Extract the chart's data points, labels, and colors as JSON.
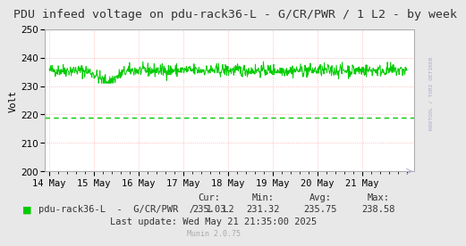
{
  "title": "PDU infeed voltage on pdu-rack36-L - G/CR/PWR / 1 L2 - by week",
  "ylabel": "Volt",
  "bg_color": "#e8e8e8",
  "plot_bg_color": "#ffffff",
  "line_color": "#00cc00",
  "dashed_green_value": 219.0,
  "upper_dotted_value": 250.0,
  "ylim": [
    200,
    250
  ],
  "yticks": [
    200,
    210,
    220,
    230,
    240,
    250
  ],
  "grid_color": "#ffaaaa",
  "legend_label": "pdu-rack36-L  -  G/CR/PWR  /  1  L2",
  "legend_color": "#00cc00",
  "stats_cur": "235.03",
  "stats_min": "231.32",
  "stats_avg": "235.75",
  "stats_max": "238.58",
  "last_update": "Last update: Wed May 21 21:35:00 2025",
  "munin_version": "Munin 2.0.75",
  "x_tick_labels": [
    "14 May",
    "15 May",
    "16 May",
    "17 May",
    "18 May",
    "19 May",
    "20 May",
    "21 May"
  ],
  "watermark": "RRDTOOL / TOBI OETIKER",
  "title_fontsize": 9.5,
  "axis_fontsize": 7.5,
  "legend_fontsize": 7.5,
  "stats_fontsize": 7.5
}
